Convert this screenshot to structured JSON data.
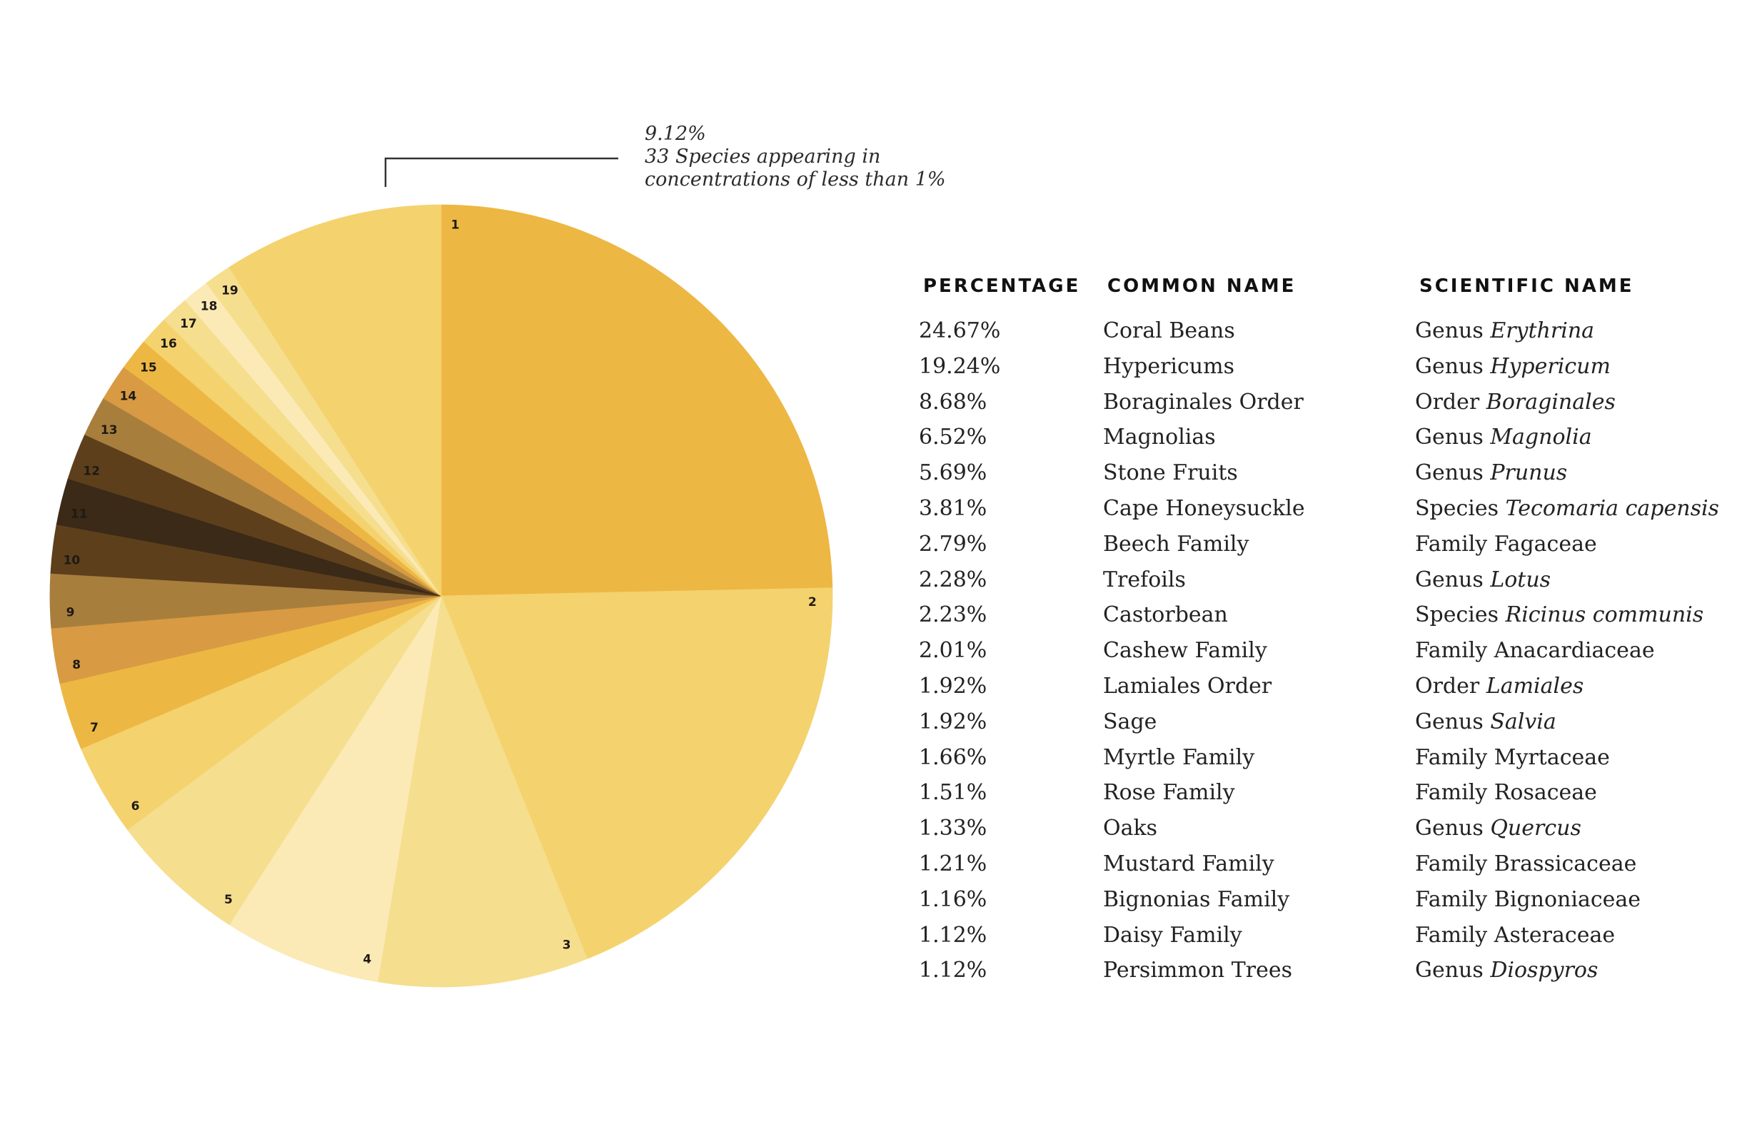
{
  "annotation": {
    "percentage": "9.12%",
    "line1": "33 Species appearing in",
    "line2": "concentrations of less than 1%"
  },
  "table": {
    "headers": {
      "percentage": "PERCENTAGE",
      "common_name": "COMMON NAME",
      "scientific_name": "SCIENTIFIC NAME"
    },
    "rows": [
      {
        "percentage": "24.67%",
        "common": "Coral Beans",
        "rank": "Genus",
        "name": "Erythrina",
        "italic": true
      },
      {
        "percentage": "19.24%",
        "common": "Hypericums",
        "rank": "Genus",
        "name": "Hypericum",
        "italic": true
      },
      {
        "percentage": "8.68%",
        "common": "Boraginales Order",
        "rank": "Order",
        "name": "Boraginales",
        "italic": true
      },
      {
        "percentage": "6.52%",
        "common": "Magnolias",
        "rank": "Genus",
        "name": "Magnolia",
        "italic": true
      },
      {
        "percentage": "5.69%",
        "common": "Stone Fruits",
        "rank": "Genus",
        "name": "Prunus",
        "italic": true
      },
      {
        "percentage": "3.81%",
        "common": "Cape Honeysuckle",
        "rank": "Species",
        "name": "Tecomaria capensis",
        "italic": true
      },
      {
        "percentage": "2.79%",
        "common": "Beech Family",
        "rank": "Family",
        "name": "Fagaceae",
        "italic": false
      },
      {
        "percentage": "2.28%",
        "common": "Trefoils",
        "rank": "Genus",
        "name": "Lotus",
        "italic": true
      },
      {
        "percentage": "2.23%",
        "common": "Castorbean",
        "rank": "Species",
        "name": "Ricinus communis",
        "italic": true
      },
      {
        "percentage": "2.01%",
        "common": "Cashew Family",
        "rank": "Family",
        "name": "Anacardiaceae",
        "italic": false
      },
      {
        "percentage": "1.92%",
        "common": "Lamiales Order",
        "rank": "Order",
        "name": "Lamiales",
        "italic": true
      },
      {
        "percentage": "1.92%",
        "common": "Sage",
        "rank": "Genus",
        "name": "Salvia",
        "italic": true
      },
      {
        "percentage": "1.66%",
        "common": "Myrtle Family",
        "rank": "Family",
        "name": "Myrtaceae",
        "italic": false
      },
      {
        "percentage": "1.51%",
        "common": "Rose Family",
        "rank": "Family",
        "name": "Rosaceae",
        "italic": false
      },
      {
        "percentage": "1.33%",
        "common": "Oaks",
        "rank": "Genus",
        "name": "Quercus",
        "italic": true
      },
      {
        "percentage": "1.21%",
        "common": "Mustard Family",
        "rank": "Family",
        "name": "Brassicaceae",
        "italic": false
      },
      {
        "percentage": "1.16%",
        "common": "Bignonias Family",
        "rank": "Family",
        "name": "Bignoniaceae",
        "italic": false
      },
      {
        "percentage": "1.12%",
        "common": "Daisy Family",
        "rank": "Family",
        "name": "Asteraceae",
        "italic": false
      },
      {
        "percentage": "1.12%",
        "common": "Persimmon Trees",
        "rank": "Genus",
        "name": "Diospyros",
        "italic": true
      }
    ]
  },
  "chart_data": {
    "type": "pie",
    "start": "12 o'clock, clockwise",
    "categories": [
      "1",
      "2",
      "3",
      "4",
      "5",
      "6",
      "7",
      "8",
      "9",
      "10",
      "11",
      "12",
      "13",
      "14",
      "15",
      "16",
      "17",
      "18",
      "19",
      "other"
    ],
    "values": [
      24.67,
      19.24,
      8.68,
      6.52,
      5.69,
      3.81,
      2.79,
      2.28,
      2.23,
      2.01,
      1.92,
      1.92,
      1.66,
      1.51,
      1.33,
      1.21,
      1.16,
      1.12,
      1.12,
      9.12
    ],
    "labels": [
      "1",
      "2",
      "3",
      "4",
      "5",
      "6",
      "7",
      "8",
      "9",
      "10",
      "11",
      "12",
      "13",
      "14",
      "15",
      "16",
      "17",
      "18",
      "19",
      ""
    ],
    "colors": [
      "#EDB743",
      "#F4D26E",
      "#F6DE8F",
      "#FBEAB6",
      "#F6DE8F",
      "#F4D26E",
      "#EDB743",
      "#D89A42",
      "#A87E3D",
      "#5E3F1C",
      "#3A2A17",
      "#5E3F1C",
      "#A87E3D",
      "#D89A42",
      "#EDB743",
      "#F4D26E",
      "#F6DE8F",
      "#FBEAB6",
      "#F6DE8F",
      "#F4D26E"
    ]
  }
}
